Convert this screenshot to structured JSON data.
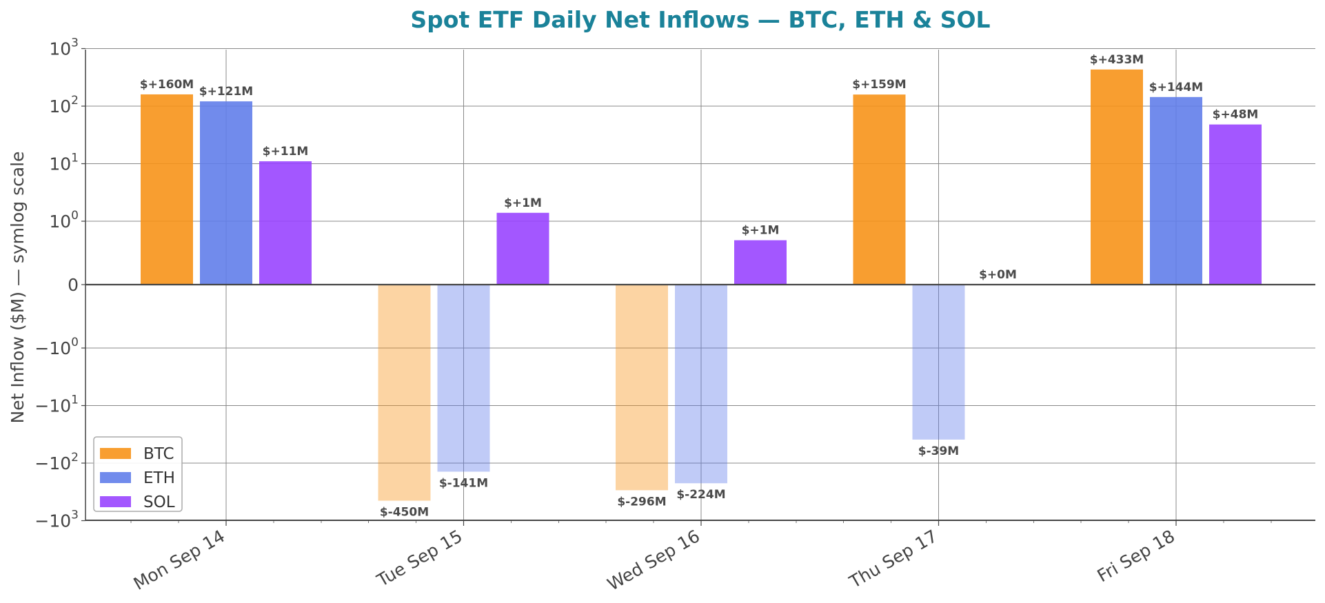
{
  "chart_data": {
    "type": "bar",
    "title": "Spot ETF Daily Net Inflows — BTC, ETH & SOL",
    "ylabel": "Net Inflow ($M) — symlog scale",
    "xlabel": "",
    "yscale": "symlog",
    "ylim": [
      -1000,
      1000
    ],
    "y_ticks": [
      {
        "value": 1000,
        "label": "10^3"
      },
      {
        "value": 100,
        "label": "10^2"
      },
      {
        "value": 10,
        "label": "10^1"
      },
      {
        "value": 1,
        "label": "10^0"
      },
      {
        "value": 0,
        "label": "0"
      },
      {
        "value": -1,
        "label": "−10^0"
      },
      {
        "value": -10,
        "label": "−10^1"
      },
      {
        "value": -100,
        "label": "−10^2"
      },
      {
        "value": -1000,
        "label": "−10^3"
      }
    ],
    "categories": [
      "Mon Sep 14",
      "Tue Sep 15",
      "Wed Sep 16",
      "Thu Sep 17",
      "Fri Sep 18"
    ],
    "series": [
      {
        "name": "BTC",
        "color": "#f7931a",
        "values": [
          160,
          -450,
          -296,
          159,
          433
        ],
        "labels": [
          "$+160M",
          "$-450M",
          "$-296M",
          "$+159M",
          "$+433M"
        ]
      },
      {
        "name": "ETH",
        "color": "#627eea",
        "values": [
          121,
          -141,
          -224,
          -39,
          144
        ],
        "labels": [
          "$+121M",
          "$-141M",
          "$-224M",
          "$-39M",
          "$+144M"
        ]
      },
      {
        "name": "SOL",
        "color": "#9945ff",
        "values": [
          11,
          1.4,
          0.7,
          0,
          48
        ],
        "labels": [
          "$+11M",
          "$+1M",
          "$+1M",
          "$+0M",
          "$+48M"
        ]
      }
    ],
    "grid": true,
    "legend_position": "lower-left",
    "title_color": "#1a8299"
  }
}
